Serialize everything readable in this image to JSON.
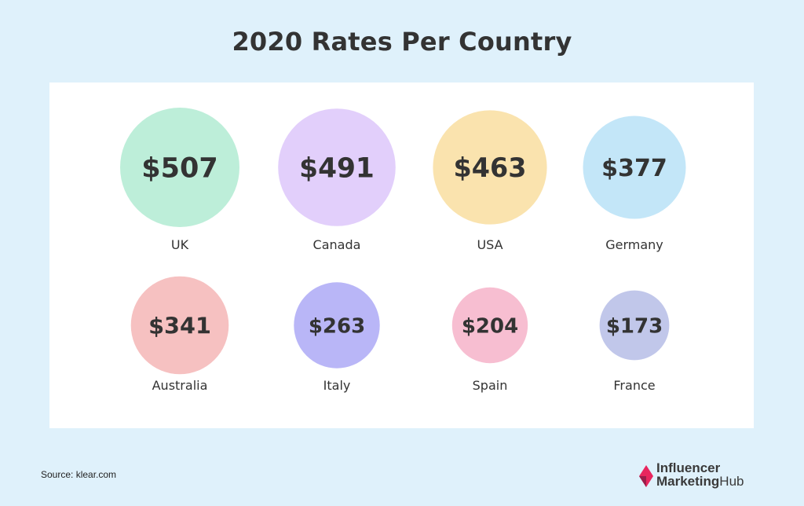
{
  "chart_data": {
    "type": "bubble",
    "title": "2020 Rates Per Country",
    "categories": [
      "UK",
      "Canada",
      "USA",
      "Germany",
      "Australia",
      "Italy",
      "Spain",
      "France"
    ],
    "values": [
      507,
      491,
      463,
      377,
      341,
      263,
      204,
      173
    ],
    "value_labels": [
      "$507",
      "$491",
      "$463",
      "$377",
      "$341",
      "$263",
      "$204",
      "$173"
    ],
    "colors": [
      "#bdeed9",
      "#e2cffb",
      "#fae3ae",
      "#c3e6f8",
      "#f6c1c1",
      "#b9b6f7",
      "#f7bed1",
      "#c1c7ea"
    ]
  },
  "source": "Source: klear.com",
  "logo": {
    "line1": "Influencer",
    "line2_bold": "Marketing",
    "line2_rest": "Hub",
    "colors": [
      "#e8265e",
      "#9b1d4a"
    ]
  }
}
